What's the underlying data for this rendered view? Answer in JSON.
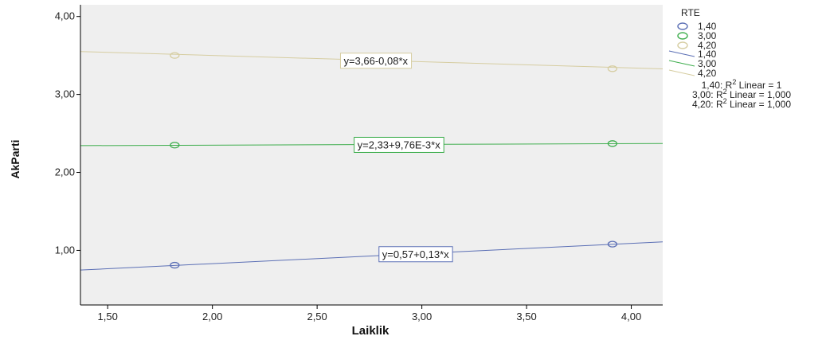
{
  "chart_data": {
    "type": "scatter",
    "title": "",
    "xlabel": "Laiklik",
    "ylabel": "AkParti",
    "xlim": [
      1.37,
      4.15
    ],
    "ylim": [
      0.3,
      4.15
    ],
    "grid": false,
    "background": "#efefef",
    "xticks": [
      1.5,
      2.0,
      2.5,
      3.0,
      3.5,
      4.0
    ],
    "xtick_labels": [
      "1,50",
      "2,00",
      "2,50",
      "3,00",
      "3,50",
      "4,00"
    ],
    "yticks": [
      1.0,
      2.0,
      3.0,
      4.0
    ],
    "ytick_labels": [
      "1,00",
      "2,00",
      "3,00",
      "4,00"
    ],
    "legend": {
      "title": "RTE",
      "placement": "right",
      "marker_entries": [
        "1,40",
        "3,00",
        "4,20"
      ],
      "line_entries": [
        "1,40",
        "3,00",
        "4,20"
      ],
      "fit_lines": [
        {
          "prefix": "1,40: R",
          "sup": "2",
          "suffix": " Linear = 1"
        },
        {
          "prefix": "3,00: R",
          "sup": "2",
          "suffix": " Linear = 1,000"
        },
        {
          "prefix": "4,20: R",
          "sup": "2",
          "suffix": " Linear = 1,000"
        }
      ]
    },
    "series": [
      {
        "name": "1,40",
        "color": "#5b6fb5",
        "points": [
          {
            "x": 1.82,
            "y": 0.81
          },
          {
            "x": 3.91,
            "y": 1.08
          }
        ],
        "fit": {
          "intercept": 0.57,
          "slope": 0.13,
          "equation": "y=0,57+0,13*x",
          "label_x": 2.97
        }
      },
      {
        "name": "3,00",
        "color": "#3fae4e",
        "points": [
          {
            "x": 1.82,
            "y": 2.35
          },
          {
            "x": 3.91,
            "y": 2.37
          }
        ],
        "fit": {
          "intercept": 2.33,
          "slope": 0.00976,
          "equation": "y=2,33+9,76E-3*x",
          "label_x": 2.89
        }
      },
      {
        "name": "4,20",
        "color": "#d6cda1",
        "points": [
          {
            "x": 1.82,
            "y": 3.5
          },
          {
            "x": 3.91,
            "y": 3.33
          }
        ],
        "fit": {
          "intercept": 3.66,
          "slope": -0.08,
          "equation": "y=3,66-0,08*x",
          "label_x": 2.78
        }
      }
    ]
  }
}
